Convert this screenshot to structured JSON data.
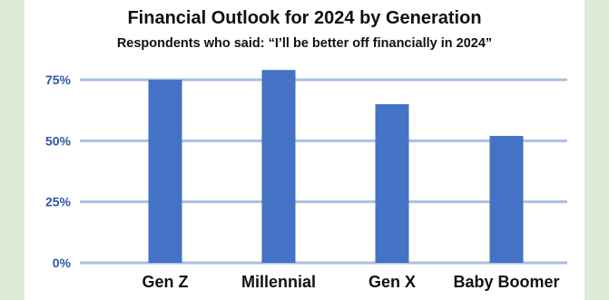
{
  "colors": {
    "background": "#dcebd5",
    "panel": "#ffffff",
    "bar": "#4472c4",
    "grid": "#a9bfe4",
    "tick_label": "#2f56a8"
  },
  "chart_data": {
    "type": "bar",
    "title": "Financial Outlook for 2024 by Generation",
    "subtitle": "Respondents who said: “I’ll be better off financially in 2024”",
    "xlabel": "",
    "ylabel": "",
    "categories": [
      "Gen Z",
      "Millennial",
      "Gen X",
      "Baby Boomer"
    ],
    "series": [
      {
        "values": [
          75,
          79,
          65,
          52
        ]
      }
    ],
    "ylim": [
      0,
      75
    ],
    "yticks": [
      0,
      25,
      50,
      75
    ],
    "ytick_labels": [
      "0%",
      "25%",
      "50%",
      "75%"
    ],
    "grid": true,
    "legend": "none"
  }
}
